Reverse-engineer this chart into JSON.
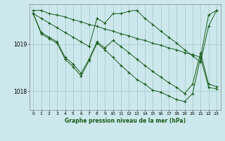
{
  "background_color": "#cce8ec",
  "grid_color": "#aacccc",
  "line_color": "#1a5c1a",
  "title": "Graphe pression niveau de la mer (hPa)",
  "xlim": [
    -0.5,
    23.5
  ],
  "ylim": [
    1017.6,
    1019.85
  ],
  "yticks": [
    1018,
    1019
  ],
  "xticks": [
    0,
    1,
    2,
    3,
    4,
    5,
    6,
    7,
    8,
    9,
    10,
    11,
    12,
    13,
    14,
    15,
    16,
    17,
    18,
    19,
    20,
    21,
    22,
    23
  ],
  "series": [
    [
      1019.72,
      1019.72,
      1019.65,
      1019.62,
      1019.58,
      1019.52,
      1019.48,
      1019.42,
      1019.38,
      1019.32,
      1019.28,
      1019.22,
      1019.18,
      1019.12,
      1019.08,
      1019.02,
      1018.98,
      1018.92,
      1018.88,
      1018.82,
      1018.78,
      1018.72,
      1019.62,
      1019.72
    ],
    [
      1019.65,
      1019.55,
      1019.45,
      1019.35,
      1019.25,
      1019.15,
      1019.05,
      1018.95,
      1019.55,
      1019.45,
      1019.65,
      1019.65,
      1019.7,
      1019.72,
      1019.55,
      1019.42,
      1019.28,
      1019.15,
      1019.02,
      1018.88,
      1018.75,
      1018.62,
      1019.38,
      1019.72
    ],
    [
      1019.65,
      1019.25,
      1019.15,
      1019.05,
      1018.72,
      1018.58,
      1018.38,
      1018.68,
      1019.05,
      1018.92,
      1019.08,
      1018.95,
      1018.82,
      1018.68,
      1018.55,
      1018.42,
      1018.3,
      1018.18,
      1018.08,
      1017.95,
      1018.15,
      1018.82,
      1018.15,
      1018.1
    ],
    [
      1019.65,
      1019.22,
      1019.12,
      1019.02,
      1018.68,
      1018.52,
      1018.32,
      1018.65,
      1019.02,
      1018.88,
      1018.72,
      1018.55,
      1018.4,
      1018.25,
      1018.15,
      1018.02,
      1017.98,
      1017.9,
      1017.82,
      1017.78,
      1017.95,
      1018.72,
      1018.08,
      1018.05
    ]
  ]
}
